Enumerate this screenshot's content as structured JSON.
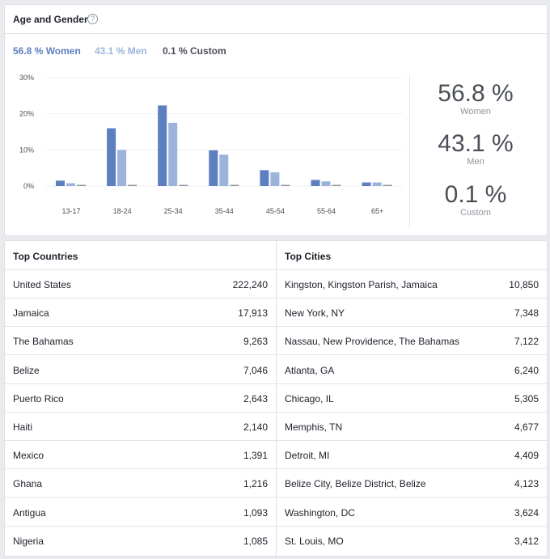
{
  "age_gender": {
    "title": "Age and Gender",
    "help_icon": "question-circle-icon",
    "legend": [
      {
        "label": "56.8 % Women",
        "color": "#5b7fbf"
      },
      {
        "label": "43.1 % Men",
        "color": "#9cb4db"
      },
      {
        "label": "0.1 % Custom",
        "color": "#4b4f56"
      }
    ],
    "stats": [
      {
        "value": "56.8 %",
        "label": "Women"
      },
      {
        "value": "43.1 %",
        "label": "Men"
      },
      {
        "value": "0.1 %",
        "label": "Custom"
      }
    ]
  },
  "chart_data": {
    "type": "bar",
    "categories": [
      "13-17",
      "18-24",
      "25-34",
      "35-44",
      "45-54",
      "55-64",
      "65+"
    ],
    "y_tick_labels": [
      "0%",
      "10%",
      "20%",
      "30%"
    ],
    "ylim": [
      0,
      30
    ],
    "grid": true,
    "series": [
      {
        "name": "Women",
        "color": "#5b7fbf",
        "values": [
          1.5,
          16.0,
          22.3,
          9.9,
          4.4,
          1.7,
          1.0
        ]
      },
      {
        "name": "Men",
        "color": "#9cb4db",
        "values": [
          0.8,
          10.0,
          17.5,
          8.7,
          3.8,
          1.3,
          1.0
        ]
      },
      {
        "name": "Custom",
        "color": "#8d949e",
        "values": [
          0.02,
          0.02,
          0.02,
          0.02,
          0.02,
          0.02,
          0.02
        ]
      }
    ]
  },
  "top_countries": {
    "header": "Top Countries",
    "rows": [
      {
        "name": "United States",
        "value": "222,240"
      },
      {
        "name": "Jamaica",
        "value": "17,913"
      },
      {
        "name": "The Bahamas",
        "value": "9,263"
      },
      {
        "name": "Belize",
        "value": "7,046"
      },
      {
        "name": "Puerto Rico",
        "value": "2,643"
      },
      {
        "name": "Haiti",
        "value": "2,140"
      },
      {
        "name": "Mexico",
        "value": "1,391"
      },
      {
        "name": "Ghana",
        "value": "1,216"
      },
      {
        "name": "Antigua",
        "value": "1,093"
      },
      {
        "name": "Nigeria",
        "value": "1,085"
      }
    ]
  },
  "top_cities": {
    "header": "Top Cities",
    "rows": [
      {
        "name": "Kingston, Kingston Parish, Jamaica",
        "value": "10,850"
      },
      {
        "name": "New York, NY",
        "value": "7,348"
      },
      {
        "name": "Nassau, New Providence, The Bahamas",
        "value": "7,122"
      },
      {
        "name": "Atlanta, GA",
        "value": "6,240"
      },
      {
        "name": "Chicago, IL",
        "value": "5,305"
      },
      {
        "name": "Memphis, TN",
        "value": "4,677"
      },
      {
        "name": "Detroit, MI",
        "value": "4,409"
      },
      {
        "name": "Belize City, Belize District, Belize",
        "value": "4,123"
      },
      {
        "name": "Washington, DC",
        "value": "3,624"
      },
      {
        "name": "St. Louis, MO",
        "value": "3,412"
      }
    ]
  }
}
